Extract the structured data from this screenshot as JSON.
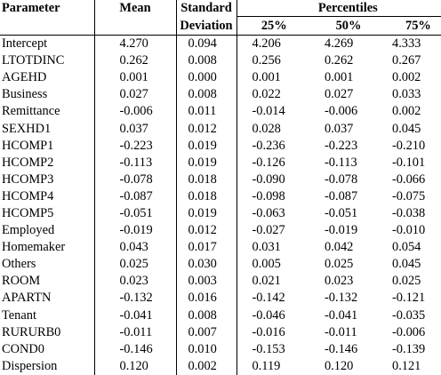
{
  "table": {
    "headers": {
      "parameter": "Parameter",
      "mean": "Mean",
      "sd_line1": "Standard",
      "sd_line2": "Deviation",
      "percentiles": "Percentiles",
      "p25": "25%",
      "p50": "50%",
      "p75": "75%"
    },
    "rows": [
      {
        "param": "Intercept",
        "mean": "4.270",
        "sd": "0.094",
        "p25": "4.206",
        "p50": "4.269",
        "p75": "4.333"
      },
      {
        "param": "LTOTDINC",
        "mean": "0.262",
        "sd": "0.008",
        "p25": "0.256",
        "p50": "0.262",
        "p75": "0.267"
      },
      {
        "param": "AGEHD",
        "mean": "0.001",
        "sd": "0.000",
        "p25": "0.001",
        "p50": "0.001",
        "p75": "0.002"
      },
      {
        "param": "Business",
        "mean": "0.027",
        "sd": "0.008",
        "p25": "0.022",
        "p50": "0.027",
        "p75": "0.033"
      },
      {
        "param": "Remittance",
        "mean": "-0.006",
        "sd": "0.011",
        "p25": "-0.014",
        "p50": "-0.006",
        "p75": "0.002"
      },
      {
        "param": "SEXHD1",
        "mean": "0.037",
        "sd": "0.012",
        "p25": "0.028",
        "p50": "0.037",
        "p75": "0.045"
      },
      {
        "param": "HCOMP1",
        "mean": "-0.223",
        "sd": "0.019",
        "p25": "-0.236",
        "p50": "-0.223",
        "p75": "-0.210"
      },
      {
        "param": "HCOMP2",
        "mean": "-0.113",
        "sd": "0.019",
        "p25": "-0.126",
        "p50": "-0.113",
        "p75": "-0.101"
      },
      {
        "param": "HCOMP3",
        "mean": "-0.078",
        "sd": "0.018",
        "p25": "-0.090",
        "p50": "-0.078",
        "p75": "-0.066"
      },
      {
        "param": "HCOMP4",
        "mean": "-0.087",
        "sd": "0.018",
        "p25": "-0.098",
        "p50": "-0.087",
        "p75": "-0.075"
      },
      {
        "param": "HCOMP5",
        "mean": "-0.051",
        "sd": "0.019",
        "p25": "-0.063",
        "p50": "-0.051",
        "p75": "-0.038"
      },
      {
        "param": "Employed",
        "mean": "-0.019",
        "sd": "0.012",
        "p25": "-0.027",
        "p50": "-0.019",
        "p75": "-0.010"
      },
      {
        "param": "Homemaker",
        "mean": "0.043",
        "sd": "0.017",
        "p25": "0.031",
        "p50": "0.042",
        "p75": "0.054"
      },
      {
        "param": "Others",
        "mean": "0.025",
        "sd": "0.030",
        "p25": "0.005",
        "p50": "0.025",
        "p75": "0.045"
      },
      {
        "param": "ROOM",
        "mean": "0.023",
        "sd": "0.003",
        "p25": "0.021",
        "p50": "0.023",
        "p75": "0.025"
      },
      {
        "param": "APARTN",
        "mean": "-0.132",
        "sd": "0.016",
        "p25": "-0.142",
        "p50": "-0.132",
        "p75": "-0.121"
      },
      {
        "param": "Tenant",
        "mean": "-0.041",
        "sd": "0.008",
        "p25": "-0.046",
        "p50": "-0.041",
        "p75": "-0.035"
      },
      {
        "param": "RURURB0",
        "mean": "-0.011",
        "sd": "0.007",
        "p25": "-0.016",
        "p50": "-0.011",
        "p75": "-0.006"
      },
      {
        "param": "COND0",
        "mean": "-0.146",
        "sd": "0.010",
        "p25": "-0.153",
        "p50": "-0.146",
        "p75": "-0.139"
      },
      {
        "param": "Dispersion",
        "mean": "0.120",
        "sd": "0.002",
        "p25": "0.119",
        "p50": "0.120",
        "p75": "0.121"
      }
    ]
  }
}
